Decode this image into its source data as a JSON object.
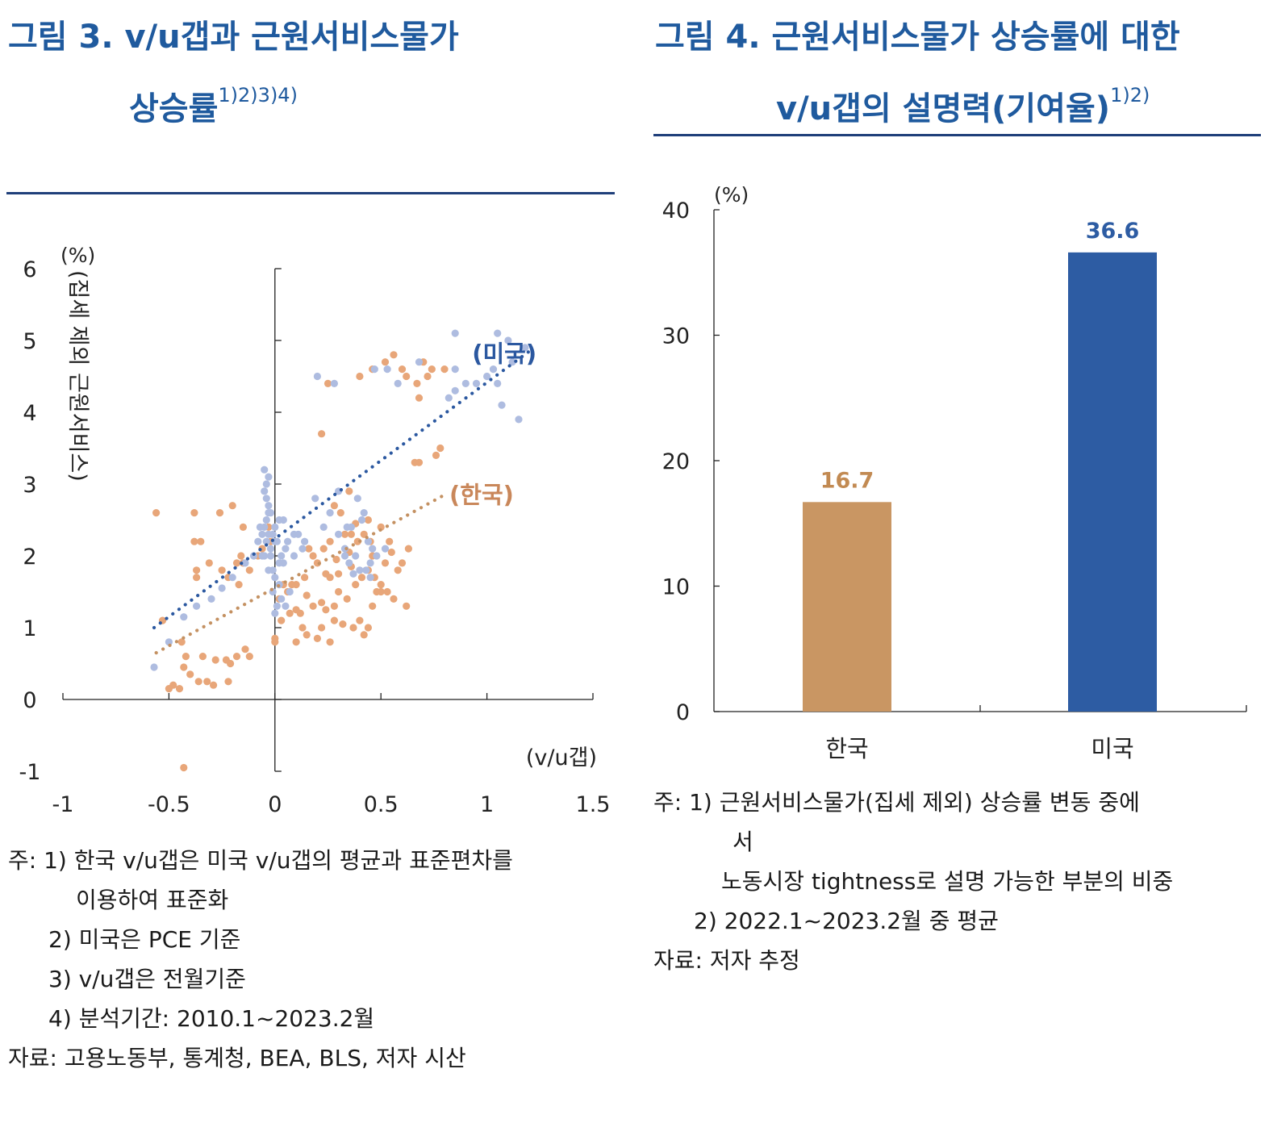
{
  "fig3": {
    "title_line1": "그림 3. v/u갭과 근원서비스물가",
    "title_line2": "상승률",
    "title_sup": "1)2)3)4)",
    "notes": [
      "주: 1) 한국 v/u갭은 미국 v/u갭의 평균과 표준편차를",
      "이용하여 표준화",
      "2) 미국은 PCE 기준",
      "3) v/u갭은 전월기준",
      "4) 분석기간: 2010.1~2023.2월",
      "자료: 고용노동부, 통계청, BEA, BLS, 저자 시산"
    ]
  },
  "fig4": {
    "title_line1": "그림 4. 근원서비스물가 상승률에 대한",
    "title_line2": "v/u갭의 설명력(기여율)",
    "title_sup": "1)2)",
    "notes": [
      "주: 1) 근원서비스물가(집세 제외) 상승률 변동 중에",
      "서",
      "노동시장 tightness로 설명 가능한 부분의 비중",
      "2) 2022.1~2023.2월 중 평균",
      "자료: 저자 추정"
    ]
  },
  "colors": {
    "korea": "#e8a679",
    "korea_trend": "#c49162",
    "us": "#aebce0",
    "us_trend": "#2b58a0",
    "bar_korea": "#c99663",
    "bar_us": "#2d5ca3",
    "rule": "#1f3f7a"
  },
  "chart_data": [
    {
      "type": "scatter",
      "unit": "(%)",
      "ylabel": "(집세 제외 근원서비스)",
      "xlabel": "(v/u갭)",
      "xlim": [
        -1,
        1.5
      ],
      "ylim": [
        -1,
        6
      ],
      "xticks": [
        "-1",
        "-0.5",
        "0",
        "0.5",
        "1",
        "1.5"
      ],
      "yticks": [
        "-1",
        "0",
        "1",
        "2",
        "3",
        "4",
        "5",
        "6"
      ],
      "series": [
        {
          "name": "(한국)",
          "trend": [
            [
              -0.56,
              0.65
            ],
            [
              0.8,
              2.85
            ]
          ],
          "points": [
            [
              -0.56,
              2.6
            ],
            [
              -0.38,
              2.6
            ],
            [
              -0.26,
              2.6
            ],
            [
              -0.2,
              2.7
            ],
            [
              -0.38,
              2.2
            ],
            [
              -0.35,
              2.2
            ],
            [
              -0.37,
              1.8
            ],
            [
              -0.37,
              1.7
            ],
            [
              -0.31,
              1.9
            ],
            [
              -0.25,
              1.8
            ],
            [
              -0.22,
              1.7
            ],
            [
              -0.18,
              1.9
            ],
            [
              -0.15,
              1.9
            ],
            [
              -0.12,
              1.8
            ],
            [
              -0.16,
              2.0
            ],
            [
              -0.08,
              2.0
            ],
            [
              -0.06,
              2.1
            ],
            [
              -0.03,
              2.4
            ],
            [
              -0.02,
              2.2
            ],
            [
              -0.15,
              2.4
            ],
            [
              -0.17,
              1.6
            ],
            [
              -0.53,
              1.1
            ],
            [
              -0.44,
              0.8
            ],
            [
              -0.42,
              0.6
            ],
            [
              -0.34,
              0.6
            ],
            [
              -0.28,
              0.55
            ],
            [
              -0.23,
              0.55
            ],
            [
              -0.21,
              0.5
            ],
            [
              -0.18,
              0.6
            ],
            [
              -0.14,
              0.7
            ],
            [
              -0.12,
              0.6
            ],
            [
              -0.43,
              0.45
            ],
            [
              -0.4,
              0.35
            ],
            [
              -0.36,
              0.25
            ],
            [
              -0.32,
              0.25
            ],
            [
              -0.29,
              0.2
            ],
            [
              -0.22,
              0.25
            ],
            [
              -0.5,
              0.15
            ],
            [
              -0.48,
              0.2
            ],
            [
              -0.45,
              0.15
            ],
            [
              -0.43,
              -0.95
            ],
            [
              0.0,
              0.85
            ],
            [
              0.0,
              0.8
            ],
            [
              0.03,
              1.1
            ],
            [
              0.07,
              1.2
            ],
            [
              0.1,
              1.25
            ],
            [
              0.12,
              1.2
            ],
            [
              0.13,
              1.0
            ],
            [
              0.15,
              0.9
            ],
            [
              0.1,
              0.8
            ],
            [
              0.2,
              0.85
            ],
            [
              0.26,
              0.8
            ],
            [
              0.22,
              1.0
            ],
            [
              0.28,
              1.1
            ],
            [
              0.32,
              1.05
            ],
            [
              0.37,
              1.0
            ],
            [
              0.4,
              1.1
            ],
            [
              0.44,
              1.0
            ],
            [
              0.42,
              0.9
            ],
            [
              0.46,
              1.3
            ],
            [
              0.48,
              1.5
            ],
            [
              0.5,
              1.5
            ],
            [
              0.53,
              1.5
            ],
            [
              0.56,
              1.4
            ],
            [
              0.58,
              1.8
            ],
            [
              0.6,
              1.9
            ],
            [
              0.63,
              2.1
            ],
            [
              0.54,
              2.2
            ],
            [
              0.5,
              2.4
            ],
            [
              0.46,
              2.0
            ],
            [
              0.44,
              2.5
            ],
            [
              0.42,
              2.3
            ],
            [
              0.39,
              2.2
            ],
            [
              0.36,
              2.3
            ],
            [
              0.33,
              2.3
            ],
            [
              0.31,
              2.6
            ],
            [
              0.28,
              2.7
            ],
            [
              0.26,
              2.2
            ],
            [
              0.23,
              2.1
            ],
            [
              0.2,
              1.9
            ],
            [
              0.18,
              2.0
            ],
            [
              0.16,
              2.1
            ],
            [
              0.14,
              1.7
            ],
            [
              0.1,
              1.6
            ],
            [
              0.08,
              1.6
            ],
            [
              0.06,
              1.5
            ],
            [
              0.04,
              1.6
            ],
            [
              0.02,
              1.4
            ],
            [
              0.15,
              1.45
            ],
            [
              0.18,
              1.3
            ],
            [
              0.22,
              1.35
            ],
            [
              0.24,
              1.25
            ],
            [
              0.28,
              1.3
            ],
            [
              0.3,
              1.5
            ],
            [
              0.34,
              1.4
            ],
            [
              0.38,
              1.6
            ],
            [
              0.41,
              1.7
            ],
            [
              0.44,
              1.8
            ],
            [
              0.47,
              1.7
            ],
            [
              0.5,
              1.6
            ],
            [
              0.52,
              1.9
            ],
            [
              0.36,
              1.85
            ],
            [
              0.3,
              1.75
            ],
            [
              0.26,
              1.7
            ],
            [
              0.24,
              1.75
            ],
            [
              0.29,
              1.95
            ],
            [
              0.35,
              2.05
            ],
            [
              0.38,
              2.45
            ],
            [
              0.45,
              2.2
            ],
            [
              0.55,
              2.05
            ],
            [
              0.62,
              1.3
            ],
            [
              0.35,
              2.9
            ],
            [
              0.22,
              3.7
            ],
            [
              0.25,
              4.4
            ],
            [
              0.4,
              4.5
            ],
            [
              0.46,
              4.6
            ],
            [
              0.52,
              4.7
            ],
            [
              0.56,
              4.8
            ],
            [
              0.62,
              4.5
            ],
            [
              0.67,
              4.4
            ],
            [
              0.72,
              4.5
            ],
            [
              0.74,
              4.6
            ],
            [
              0.68,
              4.2
            ],
            [
              0.76,
              3.4
            ],
            [
              0.78,
              3.5
            ],
            [
              0.68,
              3.3
            ],
            [
              0.66,
              3.3
            ],
            [
              0.8,
              4.6
            ],
            [
              0.6,
              4.6
            ],
            [
              0.7,
              4.7
            ]
          ]
        },
        {
          "name": "(미국)",
          "trend": [
            [
              -0.57,
              1.0
            ],
            [
              1.2,
              4.85
            ]
          ],
          "points": [
            [
              -0.57,
              0.45
            ],
            [
              -0.5,
              0.8
            ],
            [
              -0.43,
              1.15
            ],
            [
              -0.37,
              1.3
            ],
            [
              -0.3,
              1.4
            ],
            [
              -0.25,
              1.55
            ],
            [
              -0.2,
              1.7
            ],
            [
              -0.14,
              1.9
            ],
            [
              -0.1,
              2.0
            ],
            [
              -0.08,
              2.2
            ],
            [
              -0.06,
              2.3
            ],
            [
              -0.05,
              2.4
            ],
            [
              -0.04,
              2.5
            ],
            [
              -0.03,
              2.6
            ],
            [
              -0.02,
              2.1
            ],
            [
              -0.01,
              2.3
            ],
            [
              0.0,
              2.4
            ],
            [
              0.01,
              2.2
            ],
            [
              0.02,
              2.5
            ],
            [
              0.03,
              2.0
            ],
            [
              0.04,
              1.9
            ],
            [
              0.05,
              2.1
            ],
            [
              -0.02,
              2.6
            ],
            [
              -0.03,
              2.7
            ],
            [
              -0.04,
              2.2
            ],
            [
              -0.06,
              2.0
            ],
            [
              -0.07,
              2.4
            ],
            [
              -0.02,
              2.0
            ],
            [
              -0.01,
              1.8
            ],
            [
              0.0,
              1.7
            ],
            [
              0.02,
              1.6
            ],
            [
              0.03,
              1.4
            ],
            [
              0.05,
              1.3
            ],
            [
              0.07,
              1.5
            ],
            [
              0.09,
              2.0
            ],
            [
              0.11,
              2.3
            ],
            [
              0.13,
              2.1
            ],
            [
              0.0,
              1.2
            ],
            [
              0.01,
              1.3
            ],
            [
              -0.01,
              1.5
            ],
            [
              -0.03,
              1.8
            ],
            [
              -0.05,
              2.0
            ],
            [
              0.02,
              1.9
            ],
            [
              -0.04,
              3.0
            ],
            [
              -0.05,
              2.9
            ],
            [
              -0.03,
              3.1
            ],
            [
              -0.05,
              3.2
            ],
            [
              -0.04,
              2.8
            ],
            [
              0.0,
              2.2
            ],
            [
              -0.03,
              2.3
            ],
            [
              0.04,
              2.5
            ],
            [
              0.06,
              2.2
            ],
            [
              0.09,
              2.3
            ],
            [
              0.14,
              2.2
            ],
            [
              0.19,
              2.8
            ],
            [
              0.23,
              2.4
            ],
            [
              0.26,
              2.6
            ],
            [
              0.3,
              2.3
            ],
            [
              0.33,
              2.1
            ],
            [
              0.36,
              2.4
            ],
            [
              0.39,
              2.8
            ],
            [
              0.42,
              2.6
            ],
            [
              0.44,
              2.2
            ],
            [
              0.46,
              2.1
            ],
            [
              0.38,
              2.0
            ],
            [
              0.35,
              1.9
            ],
            [
              0.33,
              2.0
            ],
            [
              0.4,
              1.8
            ],
            [
              0.43,
              1.8
            ],
            [
              0.45,
              1.9
            ],
            [
              0.48,
              2.0
            ],
            [
              0.52,
              2.1
            ],
            [
              0.3,
              2.9
            ],
            [
              0.34,
              2.4
            ],
            [
              0.41,
              2.5
            ],
            [
              0.45,
              1.7
            ],
            [
              0.37,
              1.75
            ],
            [
              0.2,
              4.5
            ],
            [
              0.28,
              4.4
            ],
            [
              0.47,
              4.6
            ],
            [
              0.53,
              4.6
            ],
            [
              0.58,
              4.4
            ],
            [
              0.68,
              4.7
            ],
            [
              0.82,
              4.2
            ],
            [
              0.85,
              4.3
            ],
            [
              0.9,
              4.4
            ],
            [
              0.85,
              4.6
            ],
            [
              0.95,
              4.4
            ],
            [
              1.0,
              4.5
            ],
            [
              1.03,
              4.6
            ],
            [
              1.05,
              4.4
            ],
            [
              1.07,
              4.1
            ],
            [
              1.1,
              5.0
            ],
            [
              1.12,
              4.7
            ],
            [
              1.15,
              3.9
            ],
            [
              1.18,
              4.9
            ],
            [
              0.85,
              5.1
            ],
            [
              1.05,
              5.1
            ]
          ]
        }
      ]
    },
    {
      "type": "bar",
      "unit": "(%)",
      "categories": [
        "한국",
        "미국"
      ],
      "values": [
        16.7,
        36.6
      ],
      "value_labels": [
        "16.7",
        "36.6"
      ],
      "ylim": [
        0,
        40
      ],
      "yticks": [
        "0",
        "10",
        "20",
        "30",
        "40"
      ]
    }
  ]
}
